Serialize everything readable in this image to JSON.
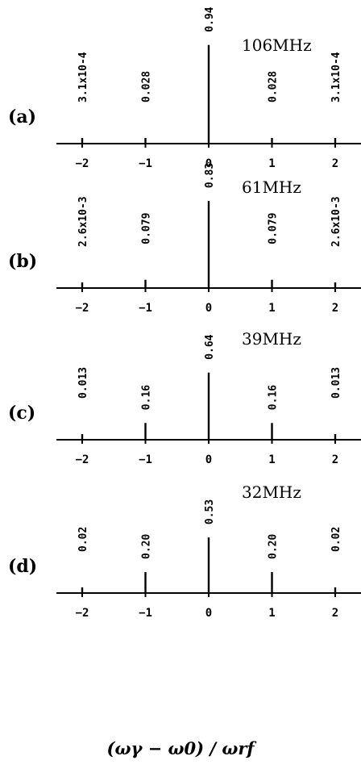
{
  "chart_data": [
    {
      "type": "bar",
      "panel": "(a)",
      "frequency": "106MHz",
      "x": [
        -2,
        -1,
        0,
        1,
        2
      ],
      "tick_labels": [
        "−2",
        "−1",
        "0",
        "1",
        "2"
      ],
      "values": [
        0.00031,
        0.028,
        0.94,
        0.028,
        0.00031
      ],
      "value_labels": [
        "3.1x10-4",
        "0.028",
        "0.94",
        "0.028",
        "3.1x10-4"
      ],
      "xlim": [
        -2.4,
        2.3
      ],
      "ylim": [
        0,
        1
      ]
    },
    {
      "type": "bar",
      "panel": "(b)",
      "frequency": "61MHz",
      "x": [
        -2,
        -1,
        0,
        1,
        2
      ],
      "tick_labels": [
        "−2",
        "−1",
        "0",
        "1",
        "2"
      ],
      "values": [
        0.0026,
        0.079,
        0.83,
        0.079,
        0.0026
      ],
      "value_labels": [
        "2.6x10-3",
        "0.079",
        "0.83",
        "0.079",
        "2.6x10-3"
      ],
      "xlim": [
        -2.4,
        2.3
      ],
      "ylim": [
        0,
        1
      ]
    },
    {
      "type": "bar",
      "panel": "(c)",
      "frequency": "39MHz",
      "x": [
        -2,
        -1,
        0,
        1,
        2
      ],
      "tick_labels": [
        "−2",
        "−1",
        "0",
        "1",
        "2"
      ],
      "values": [
        0.013,
        0.16,
        0.64,
        0.16,
        0.013
      ],
      "value_labels": [
        "0.013",
        "0.16",
        "0.64",
        "0.16",
        "0.013"
      ],
      "xlim": [
        -2.4,
        2.3
      ],
      "ylim": [
        0,
        1
      ]
    },
    {
      "type": "bar",
      "panel": "(d)",
      "frequency": "32MHz",
      "x": [
        -2,
        -1,
        0,
        1,
        2
      ],
      "tick_labels": [
        "−2",
        "−1",
        "0",
        "1",
        "2"
      ],
      "values": [
        0.02,
        0.2,
        0.53,
        0.2,
        0.02
      ],
      "value_labels": [
        "0.02",
        "0.20",
        "0.53",
        "0.20",
        "0.02"
      ],
      "xlim": [
        -2.4,
        2.3
      ],
      "ylim": [
        0,
        1
      ]
    }
  ],
  "xlabel": "(ωγ − ω0) / ωrf"
}
